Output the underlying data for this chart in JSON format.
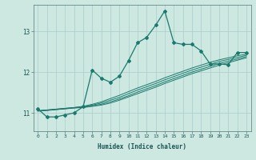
{
  "xlabel": "Humidex (Indice chaleur)",
  "background_color": "#cce8e0",
  "grid_color": "#aacccc",
  "line_color": "#1a7a6e",
  "xlim": [
    -0.5,
    23.5
  ],
  "ylim": [
    10.55,
    13.65
  ],
  "yticks": [
    11,
    12,
    13
  ],
  "xticks": [
    0,
    1,
    2,
    3,
    4,
    5,
    6,
    7,
    8,
    9,
    10,
    11,
    12,
    13,
    14,
    15,
    16,
    17,
    18,
    19,
    20,
    21,
    22,
    23
  ],
  "series_main": [
    11.1,
    10.9,
    10.9,
    10.95,
    11.0,
    11.15,
    12.05,
    11.85,
    11.75,
    11.9,
    12.28,
    12.72,
    12.85,
    13.15,
    13.5,
    12.72,
    12.68,
    12.68,
    12.52,
    12.2,
    12.2,
    12.18,
    12.48,
    12.48
  ],
  "series_linear": [
    [
      11.05,
      11.07,
      11.09,
      11.11,
      11.13,
      11.16,
      11.21,
      11.27,
      11.35,
      11.43,
      11.52,
      11.61,
      11.69,
      11.77,
      11.86,
      11.94,
      12.02,
      12.1,
      12.17,
      12.24,
      12.3,
      12.35,
      12.4,
      12.44
    ],
    [
      11.05,
      11.07,
      11.09,
      11.11,
      11.13,
      11.15,
      11.19,
      11.24,
      11.31,
      11.38,
      11.47,
      11.56,
      11.64,
      11.72,
      11.81,
      11.89,
      11.97,
      12.05,
      12.12,
      12.19,
      12.26,
      12.31,
      12.36,
      12.41
    ],
    [
      11.05,
      11.06,
      11.08,
      11.1,
      11.12,
      11.14,
      11.17,
      11.21,
      11.27,
      11.34,
      11.42,
      11.51,
      11.59,
      11.67,
      11.76,
      11.84,
      11.92,
      12.0,
      12.07,
      12.14,
      12.21,
      12.27,
      12.32,
      12.38
    ],
    [
      11.04,
      11.06,
      11.08,
      11.1,
      11.12,
      11.13,
      11.16,
      11.19,
      11.24,
      11.31,
      11.39,
      11.47,
      11.55,
      11.63,
      11.72,
      11.8,
      11.88,
      11.96,
      12.03,
      12.1,
      12.17,
      12.23,
      12.29,
      12.35
    ]
  ]
}
